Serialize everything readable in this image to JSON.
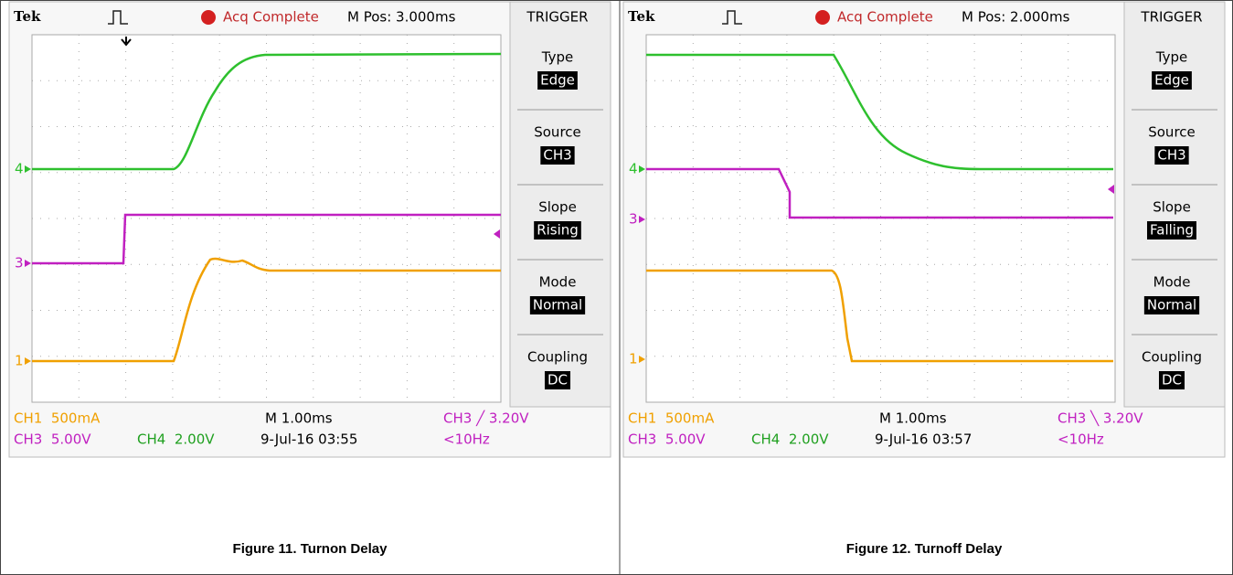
{
  "figures": [
    {
      "header": {
        "brand": "Tek",
        "status": "Acq Complete",
        "position": "M Pos: 3.000ms"
      },
      "menu": {
        "title": "TRIGGER",
        "items": [
          {
            "label": "Type",
            "value": "Edge"
          },
          {
            "label": "Source",
            "value": "CH3"
          },
          {
            "label": "Slope",
            "value": "Rising"
          },
          {
            "label": "Mode",
            "value": "Normal"
          },
          {
            "label": "Coupling",
            "value": "DC"
          }
        ]
      },
      "channel_markers": [
        "4",
        "3",
        "1"
      ],
      "readouts": {
        "ch1": "CH1  500mA",
        "ch3": "CH3  5.00V",
        "ch4": "CH4  2.00V",
        "timebase": "M 1.00ms",
        "date": "9-Jul-16 03:55",
        "trigger": "CH3 ╱ 3.20V",
        "frequency": "<10Hz"
      },
      "caption": "Figure 11. Turnon Delay"
    },
    {
      "header": {
        "brand": "Tek",
        "status": "Acq Complete",
        "position": "M Pos: 2.000ms"
      },
      "menu": {
        "title": "TRIGGER",
        "items": [
          {
            "label": "Type",
            "value": "Edge"
          },
          {
            "label": "Source",
            "value": "CH3"
          },
          {
            "label": "Slope",
            "value": "Falling"
          },
          {
            "label": "Mode",
            "value": "Normal"
          },
          {
            "label": "Coupling",
            "value": "DC"
          }
        ]
      },
      "channel_markers": [
        "4",
        "3",
        "1"
      ],
      "readouts": {
        "ch1": "CH1  500mA",
        "ch3": "CH3  5.00V",
        "ch4": "CH4  2.00V",
        "timebase": "M 1.00ms",
        "date": "9-Jul-16 03:57",
        "trigger": "CH3 ╲ 3.20V",
        "frequency": "<10Hz"
      },
      "caption": "Figure 12. Turnoff Delay"
    }
  ]
}
